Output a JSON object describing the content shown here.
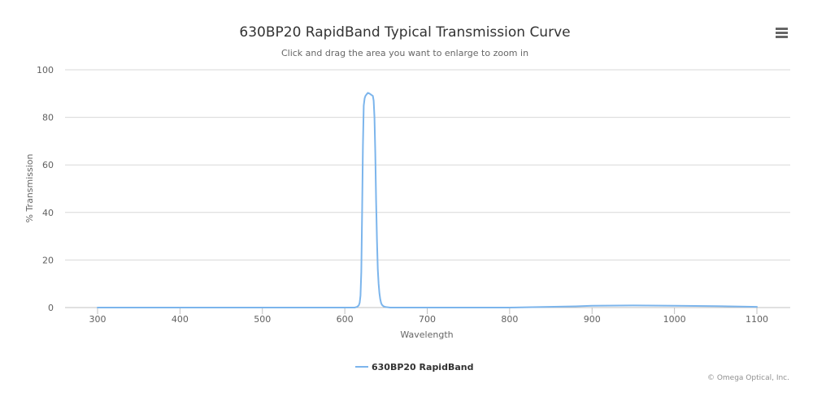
{
  "chart": {
    "title": "630BP20 RapidBand Typical Transmission Curve",
    "subtitle": "Click and drag the area you want to enlarge to zoom in",
    "credits": "© Omega Optical, Inc.",
    "menu_icon": "hamburger-menu-icon"
  },
  "colors": {
    "series": "#7cb5ec",
    "grid": "#d8d8d8",
    "axis_text": "#606060",
    "title": "#333333",
    "background": "#ffffff"
  },
  "chart_data": {
    "type": "line",
    "title": "630BP20 RapidBand Typical Transmission Curve",
    "subtitle": "Click and drag the area you want to enlarge to zoom in",
    "xlabel": "Wavelength",
    "ylabel": "% Transmission",
    "xlim": [
      300,
      1100
    ],
    "ylim": [
      0,
      100
    ],
    "xticks": [
      300,
      400,
      500,
      600,
      700,
      800,
      900,
      1000,
      1100
    ],
    "yticks": [
      0,
      20,
      40,
      60,
      80,
      100
    ],
    "grid": true,
    "legend_position": "bottom-center",
    "series": [
      {
        "name": "630BP20 RapidBand",
        "x": [
          300,
          500,
          600,
          612,
          615,
          617,
          618,
          619,
          620,
          621,
          622,
          623,
          624,
          625,
          626,
          628,
          630,
          632,
          634,
          635,
          636,
          637,
          638,
          639,
          640,
          641,
          642,
          643,
          644,
          645,
          647,
          650,
          655,
          660,
          700,
          800,
          880,
          900,
          950,
          1000,
          1050,
          1100
        ],
        "y": [
          0,
          0,
          0,
          0,
          0.3,
          1,
          2,
          5,
          15,
          40,
          68,
          85,
          88,
          89,
          89.5,
          90.3,
          90,
          89.5,
          89,
          87,
          80,
          65,
          45,
          28,
          16,
          10,
          6,
          3.5,
          2,
          1.2,
          0.5,
          0.2,
          0,
          0,
          0,
          0,
          0.5,
          0.8,
          0.9,
          0.8,
          0.6,
          0.3
        ]
      }
    ]
  }
}
